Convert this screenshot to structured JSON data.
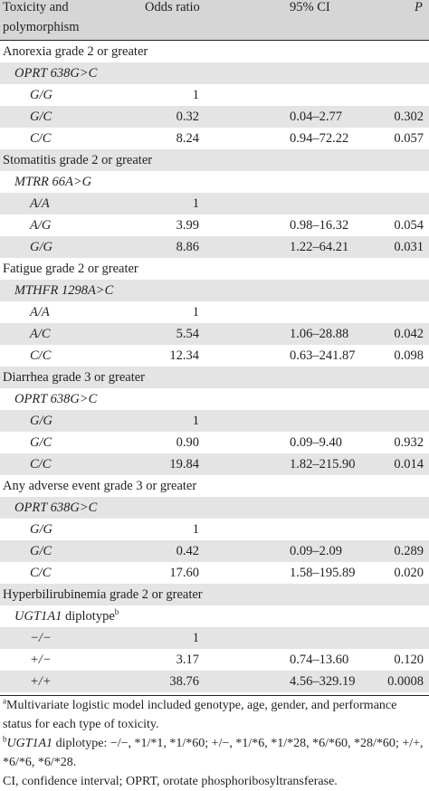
{
  "header": {
    "col1_line1": "Toxicity and",
    "col1_line2": "polymorphism",
    "col2": "Odds ratio",
    "col3": "95% CI",
    "col4": "P"
  },
  "rows": [
    {
      "kind": "section",
      "label": "Anorexia grade 2 or greater"
    },
    {
      "kind": "poly",
      "label": "OPRT 638G>C"
    },
    {
      "kind": "data",
      "genotype": "G/G",
      "or": "1",
      "ci": "",
      "p": ""
    },
    {
      "kind": "data",
      "genotype": "G/C",
      "or": "0.32",
      "ci": "0.04–2.77",
      "p": "0.302"
    },
    {
      "kind": "data",
      "genotype": "C/C",
      "or": "8.24",
      "ci": "0.94–72.22",
      "p": "0.057"
    },
    {
      "kind": "section",
      "label": "Stomatitis grade 2 or greater"
    },
    {
      "kind": "poly",
      "label": "MTRR 66A>G"
    },
    {
      "kind": "data",
      "genotype": "A/A",
      "or": "1",
      "ci": "",
      "p": ""
    },
    {
      "kind": "data",
      "genotype": "A/G",
      "or": "3.99",
      "ci": "0.98–16.32",
      "p": "0.054"
    },
    {
      "kind": "data",
      "genotype": "G/G",
      "or": "8.86",
      "ci": "1.22–64.21",
      "p": "0.031"
    },
    {
      "kind": "section",
      "label": "Fatigue grade 2 or greater"
    },
    {
      "kind": "poly",
      "label": "MTHFR 1298A>C"
    },
    {
      "kind": "data",
      "genotype": "A/A",
      "or": "1",
      "ci": "",
      "p": ""
    },
    {
      "kind": "data",
      "genotype": "A/C",
      "or": "5.54",
      "ci": "1.06–28.88",
      "p": "0.042"
    },
    {
      "kind": "data",
      "genotype": "C/C",
      "or": "12.34",
      "ci": "0.63–241.87",
      "p": "0.098"
    },
    {
      "kind": "section",
      "label": "Diarrhea grade 3 or greater"
    },
    {
      "kind": "poly",
      "label": "OPRT 638G>C"
    },
    {
      "kind": "data",
      "genotype": "G/G",
      "or": "1",
      "ci": "",
      "p": ""
    },
    {
      "kind": "data",
      "genotype": "G/C",
      "or": "0.90",
      "ci": "0.09–9.40",
      "p": "0.932"
    },
    {
      "kind": "data",
      "genotype": "C/C",
      "or": "19.84",
      "ci": "1.82–215.90",
      "p": "0.014"
    },
    {
      "kind": "section",
      "label": "Any adverse event grade 3 or greater"
    },
    {
      "kind": "poly",
      "label": "OPRT 638G>C"
    },
    {
      "kind": "data",
      "genotype": "G/G",
      "or": "1",
      "ci": "",
      "p": ""
    },
    {
      "kind": "data",
      "genotype": "G/C",
      "or": "0.42",
      "ci": "0.09–2.09",
      "p": "0.289"
    },
    {
      "kind": "data",
      "genotype": "C/C",
      "or": "17.60",
      "ci": "1.58–195.89",
      "p": "0.020"
    },
    {
      "kind": "section",
      "label": "Hyperbilirubinemia grade 2 or greater"
    },
    {
      "kind": "poly-plain",
      "label": "UGT1A1",
      "suffix": " diplotype",
      "sup": "b"
    },
    {
      "kind": "data",
      "genotype": "−/−",
      "or": "1",
      "ci": "",
      "p": ""
    },
    {
      "kind": "data",
      "genotype": "+/−",
      "or": "3.17",
      "ci": "0.74–13.60",
      "p": "0.120"
    },
    {
      "kind": "data",
      "genotype": "+/+",
      "or": "38.76",
      "ci": "4.56–329.19",
      "p": "0.0008"
    }
  ],
  "footnotes": {
    "a_mark": "a",
    "a_text": "Multivariate logistic model included genotype, age, gender, and performance status for each type of toxicity.",
    "b_mark": "b",
    "b_gene": "UGT1A1",
    "b_text": " diplotype: −/−, *1/*1, *1/*60; +/−, *1/*6, *1/*28, *6/*60, *28/*60; +/+, *6/*6, *6/*28.",
    "c_text": "CI, confidence interval; OPRT, orotate phosphoribosyltransferase."
  }
}
